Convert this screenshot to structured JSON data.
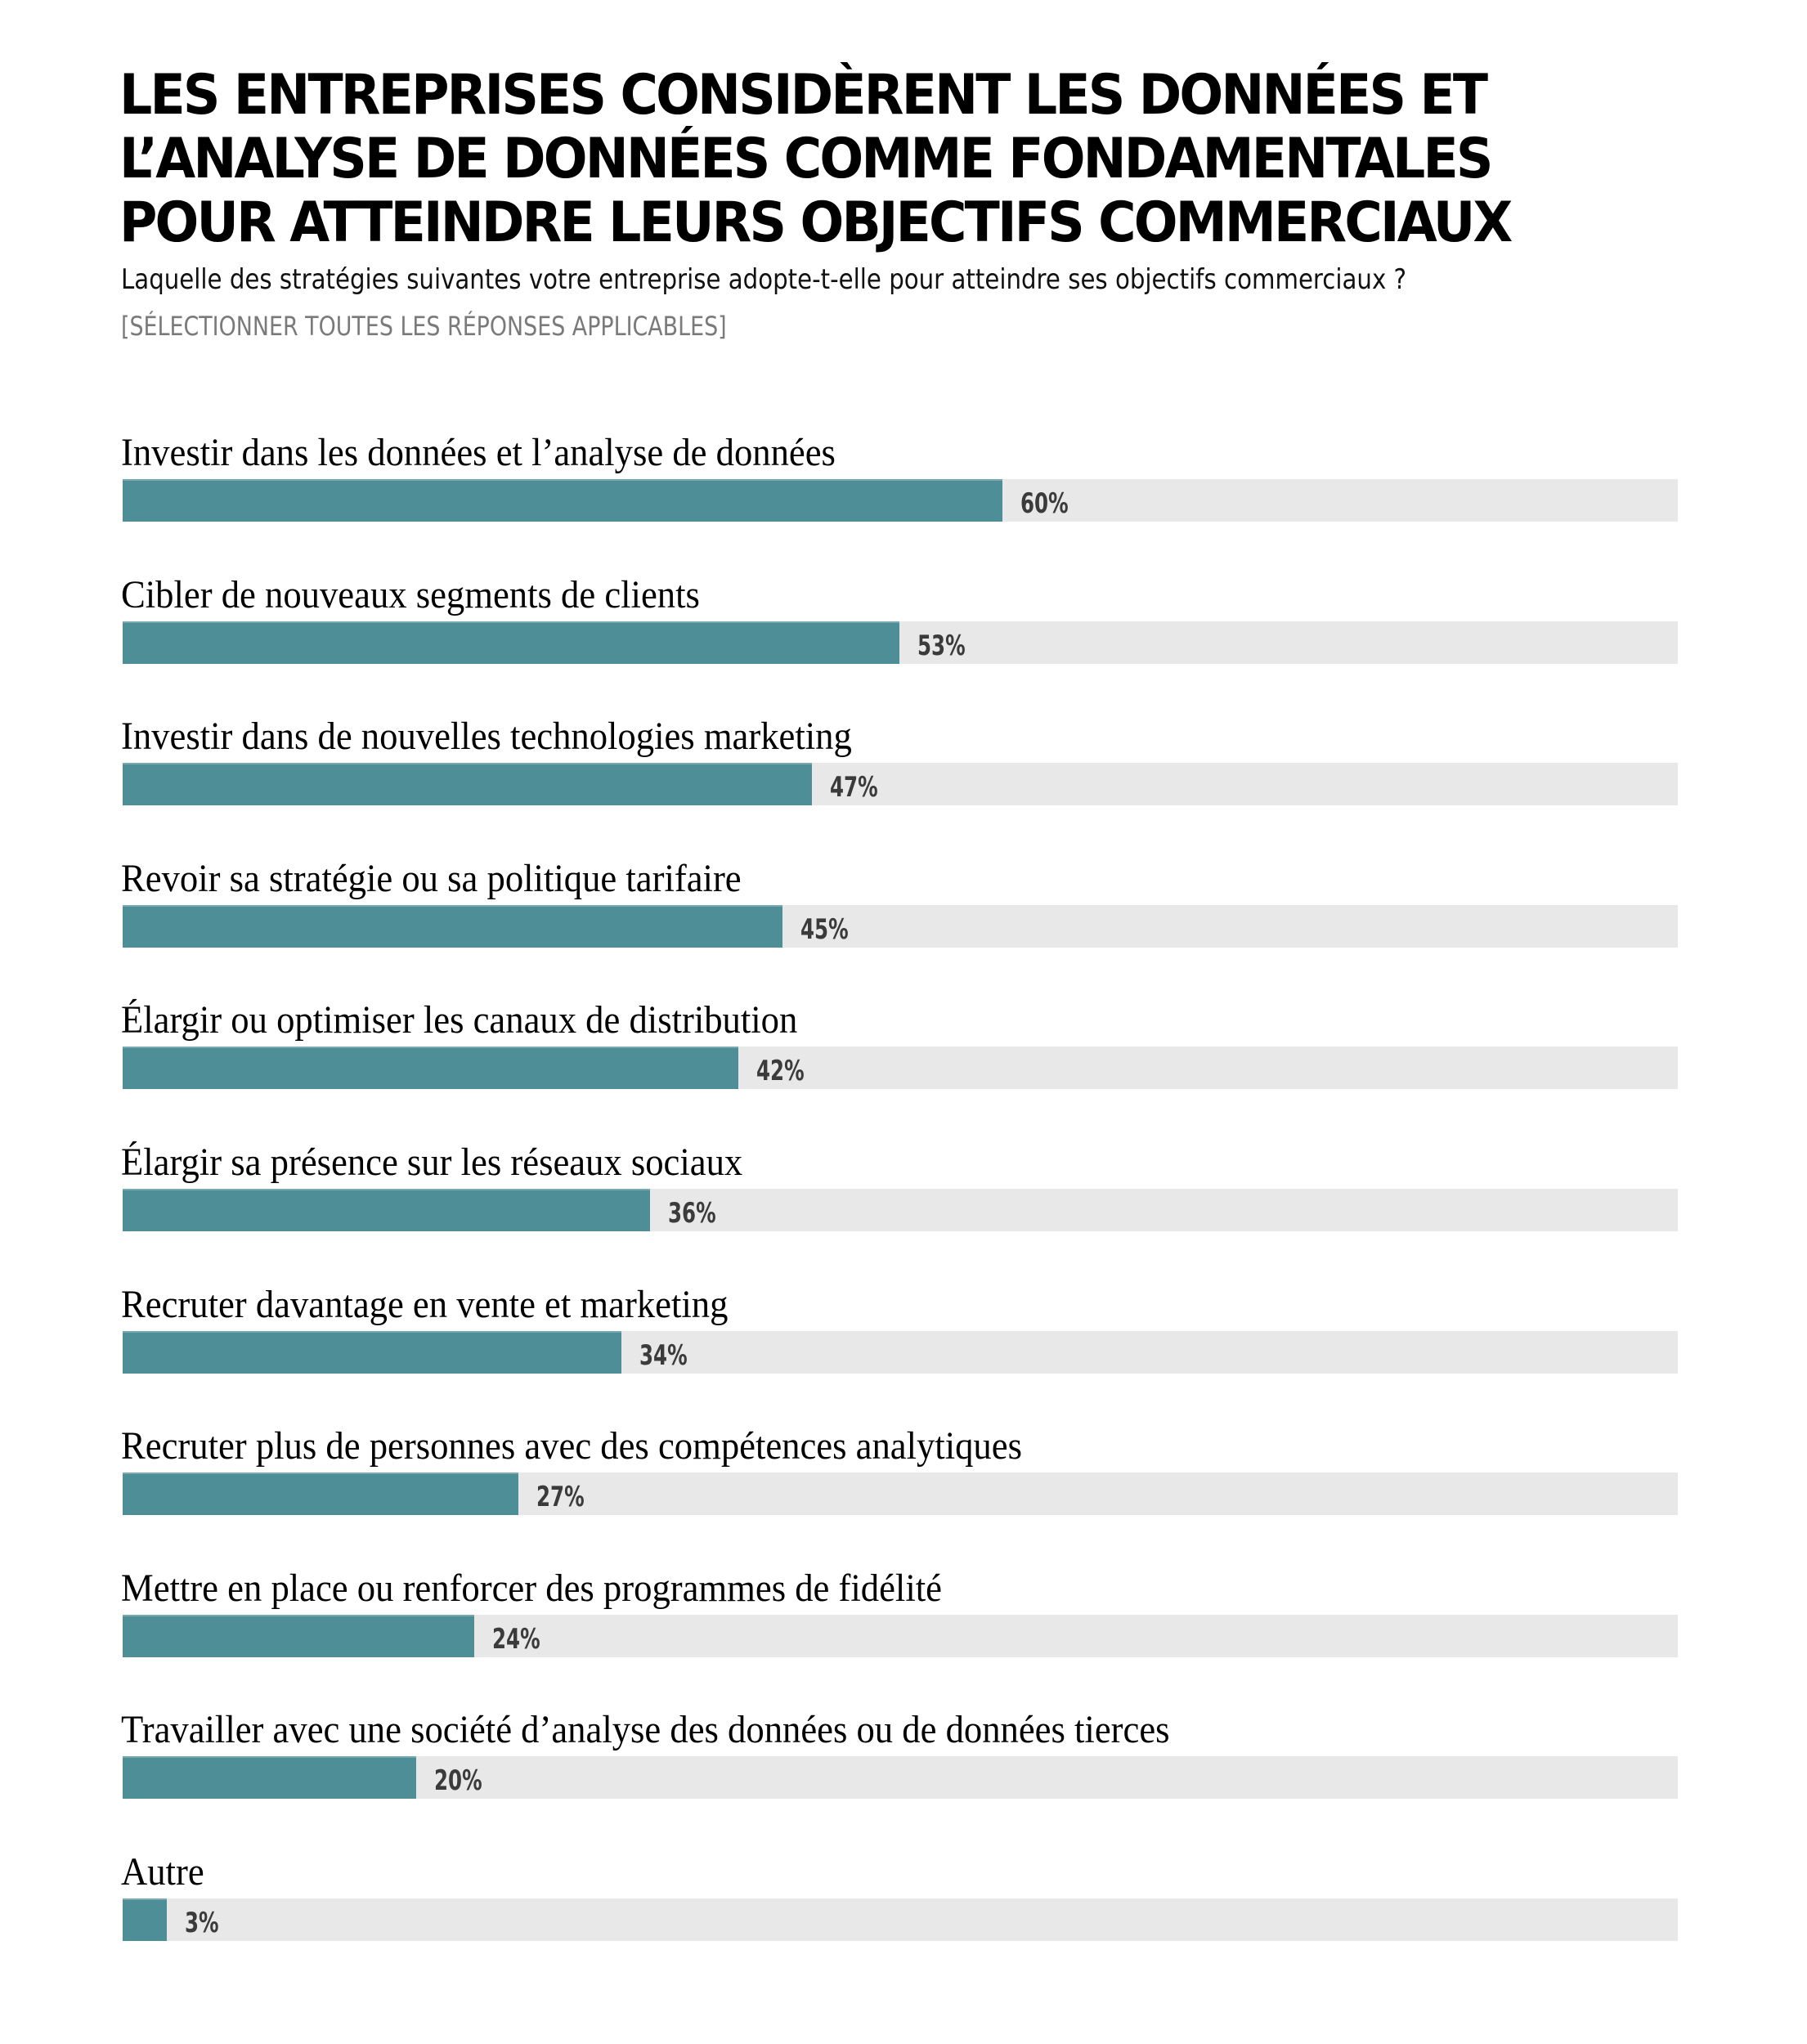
{
  "header": {
    "title": "LES ENTREPRISES CONSIDÈRENT LES DONNÉES ET L’ANALYSE DE DONNÉES COMME FONDAMENTALES POUR ATTEINDRE LEURS OBJECTIFS COMMERCIAUX",
    "subtitle": "Laquelle des stratégies suivantes votre entreprise adopte-t-elle pour atteindre ses objectifs commerciaux ?",
    "note": "[SÉLECTIONNER TOUTES LES RÉPONSES APPLICABLES]"
  },
  "colors": {
    "bar": "#4e8e97",
    "track": "#e7e8e7",
    "label": "#000000",
    "value": "#3b3b3b"
  },
  "chart_data": {
    "type": "bar",
    "orientation": "horizontal",
    "title": "LES ENTREPRISES CONSIDÈRENT LES DONNÉES ET L’ANALYSE DE DONNÉES COMME FONDAMENTALES POUR ATTEINDRE LEURS OBJECTIFS COMMERCIAUX",
    "subtitle": "Laquelle des stratégies suivantes votre entreprise adopte-t-elle pour atteindre ses objectifs commerciaux ?",
    "xlabel": "",
    "ylabel": "",
    "unit": "%",
    "xlim": [
      0,
      100
    ],
    "grid": false,
    "categories": [
      "Investir dans les données et l’analyse de données",
      "Cibler de nouveaux segments de clients",
      "Investir dans de nouvelles technologies marketing",
      "Revoir sa stratégie ou sa politique tarifaire",
      "Élargir ou optimiser les canaux de distribution",
      "Élargir sa présence sur les réseaux sociaux",
      "Recruter davantage en vente et marketing",
      "Recruter plus de personnes avec des compétences analytiques",
      "Mettre en place ou renforcer des programmes de fidélité",
      "Travailler avec une société d’analyse des données ou de données tierces",
      "Autre"
    ],
    "values": [
      60,
      53,
      47,
      45,
      42,
      36,
      34,
      27,
      24,
      20,
      3
    ],
    "value_labels": [
      "60%",
      "53%",
      "47%",
      "45%",
      "42%",
      "36%",
      "34%",
      "27%",
      "24%",
      "20%",
      "3%"
    ]
  }
}
